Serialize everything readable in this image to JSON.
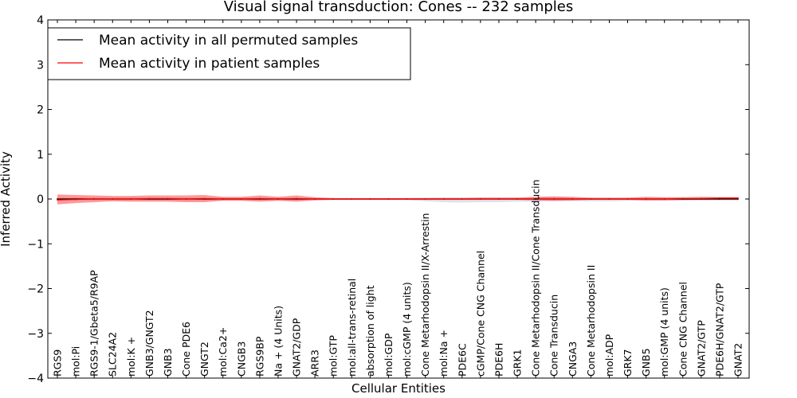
{
  "chart_data": {
    "type": "line",
    "title": "Visual signal transduction: Cones -- 232 samples",
    "xlabel": "Cellular Entities",
    "ylabel": "Inferred Activity",
    "ylim": [
      -4,
      4
    ],
    "yticks": [
      -4,
      -3,
      -2,
      -1,
      0,
      1,
      2,
      3,
      4
    ],
    "ytick_labels": [
      "−4",
      "−3",
      "−2",
      "−1",
      "0",
      "1",
      "2",
      "3",
      "4"
    ],
    "grid": false,
    "legend_position": "top-left",
    "categories": [
      "RGS9",
      "mol:Pi",
      "RGS9-1/Gbeta5/R9AP",
      "SLC24A2",
      "mol:K +",
      "GNB3/GNGT2",
      "GNB3",
      "Cone PDE6",
      "GNGT2",
      "mol:Ca2+",
      "CNGB3",
      "RGS9BP",
      "Na + (4 Units)",
      "GNAT2/GDP",
      "ARR3",
      "mol:GTP",
      "mol:all-trans-retinal",
      "absorption of light",
      "mol:GDP",
      "mol:cGMP (4 units)",
      "Cone Metarhodopsin II/X-Arrestin",
      "mol:Na +",
      "PDE6C",
      "cGMP/Cone CNG Channel",
      "PDE6H",
      "GRK1",
      "Cone Metarhodopsin II/Cone Transducin",
      "Cone Transducin",
      "CNGA3",
      "Cone Metarhodopsin II",
      "mol:ADP",
      "GRK7",
      "GNB5",
      "mol:GMP (4 units)",
      "Cone CNG Channel",
      "GNAT2/GTP",
      "PDE6H/GNAT2/GTP",
      "GNAT2"
    ],
    "series": [
      {
        "name": "Mean activity in all permuted samples",
        "color": "#000000",
        "values": [
          0,
          0,
          0,
          0,
          0,
          0,
          0,
          0,
          0,
          0,
          0,
          0,
          0,
          0,
          0,
          0,
          0,
          0,
          0,
          0,
          0,
          0,
          0,
          0,
          0,
          0,
          0,
          0,
          0,
          0,
          0,
          0,
          0,
          0,
          0,
          0,
          0,
          0
        ],
        "band_upper": [
          0.03,
          0.03,
          0.03,
          0.03,
          0.03,
          0.03,
          0.03,
          0.03,
          0.03,
          0.03,
          0.03,
          0.03,
          0.03,
          0.03,
          0.02,
          0.02,
          0.02,
          0.02,
          0.02,
          0.02,
          0.03,
          0.04,
          0.04,
          0.04,
          0.04,
          0.04,
          0.04,
          0.04,
          0.03,
          0.03,
          0.03,
          0.03,
          0.03,
          0.03,
          0.03,
          0.03,
          0.03,
          0.03
        ],
        "band_lower": [
          -0.03,
          -0.03,
          -0.03,
          -0.03,
          -0.03,
          -0.03,
          -0.03,
          -0.03,
          -0.03,
          -0.03,
          -0.03,
          -0.03,
          -0.03,
          -0.03,
          -0.02,
          -0.02,
          -0.02,
          -0.02,
          -0.02,
          -0.02,
          -0.05,
          -0.07,
          -0.08,
          -0.07,
          -0.07,
          -0.06,
          -0.06,
          -0.05,
          -0.05,
          -0.05,
          -0.05,
          -0.04,
          -0.04,
          -0.04,
          -0.04,
          -0.03,
          -0.03,
          -0.03
        ],
        "band_color": "#c8c8d8"
      },
      {
        "name": "Mean activity in patient samples",
        "color": "#ff0000",
        "values": [
          -0.02,
          -0.01,
          0,
          0,
          0,
          0.01,
          0.01,
          0,
          0.01,
          0,
          0,
          0.01,
          0,
          0.01,
          0,
          0,
          0,
          0,
          0,
          0,
          0,
          0,
          0,
          0,
          0,
          0,
          0,
          0,
          0,
          0,
          0,
          0,
          0,
          0,
          0.01,
          0.01,
          0.02,
          0.02
        ],
        "band_upper": [
          0.1,
          0.09,
          0.08,
          0.07,
          0.07,
          0.08,
          0.08,
          0.08,
          0.09,
          0.05,
          0.05,
          0.08,
          0.05,
          0.08,
          0.04,
          0.02,
          0.02,
          0.02,
          0.02,
          0.02,
          0.02,
          0.02,
          0.02,
          0.03,
          0.03,
          0.03,
          0.05,
          0.06,
          0.05,
          0.03,
          0.03,
          0.03,
          0.05,
          0.04,
          0.04,
          0.05,
          0.04,
          0.04
        ],
        "band_lower": [
          -0.12,
          -0.09,
          -0.07,
          -0.05,
          -0.06,
          -0.06,
          -0.06,
          -0.07,
          -0.07,
          -0.04,
          -0.04,
          -0.06,
          -0.04,
          -0.06,
          -0.03,
          -0.02,
          -0.02,
          -0.02,
          -0.02,
          -0.02,
          -0.02,
          -0.02,
          -0.02,
          -0.02,
          -0.02,
          -0.02,
          -0.03,
          -0.04,
          -0.03,
          -0.02,
          -0.02,
          -0.02,
          -0.03,
          -0.03,
          -0.02,
          -0.02,
          -0.02,
          -0.02
        ],
        "band_color": "#ff0000"
      }
    ]
  }
}
